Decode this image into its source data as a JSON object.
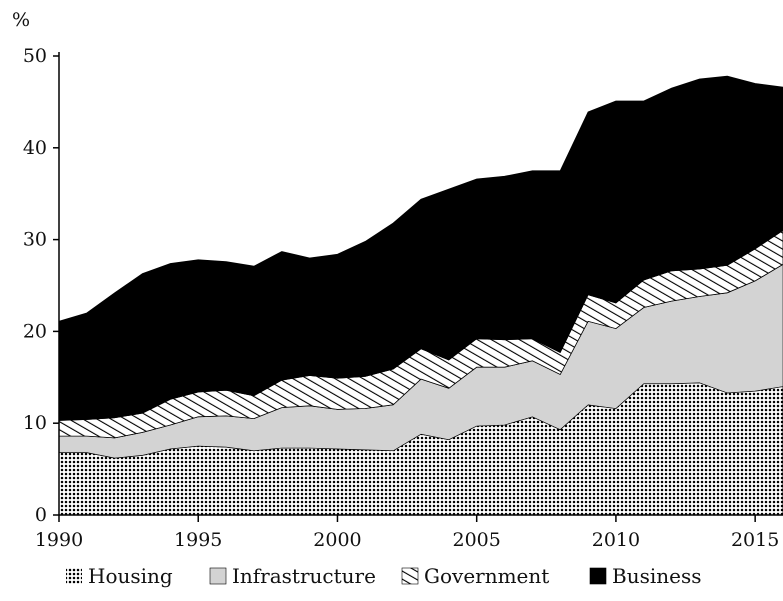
{
  "chart_data": {
    "type": "area",
    "stacked": true,
    "y_unit_label": "%",
    "x": [
      1990,
      1991,
      1992,
      1993,
      1994,
      1995,
      1996,
      1997,
      1998,
      1999,
      2000,
      2001,
      2002,
      2003,
      2004,
      2005,
      2006,
      2007,
      2008,
      2009,
      2010,
      2011,
      2012,
      2013,
      2014,
      2015,
      2016
    ],
    "series": [
      {
        "name": "Housing",
        "pattern": "dots",
        "color": "#000000",
        "values": [
          6.8,
          6.8,
          6.2,
          6.5,
          7.2,
          7.5,
          7.4,
          7.0,
          7.3,
          7.3,
          7.2,
          7.1,
          7.0,
          8.8,
          8.2,
          9.7,
          9.8,
          10.7,
          9.3,
          12.0,
          11.6,
          14.3,
          14.3,
          14.4,
          13.3,
          13.5,
          14.0
        ]
      },
      {
        "name": "Infrastructure",
        "pattern": "solid",
        "color": "#d3d3d3",
        "values": [
          1.8,
          1.8,
          2.2,
          2.5,
          2.6,
          3.2,
          3.4,
          3.5,
          4.4,
          4.6,
          4.3,
          4.5,
          5.0,
          6.0,
          5.6,
          6.4,
          6.3,
          6.1,
          6.0,
          9.1,
          8.7,
          8.3,
          9.0,
          9.4,
          10.9,
          12.0,
          13.3
        ]
      },
      {
        "name": "Government",
        "pattern": "stripes",
        "color": "#000000",
        "values": [
          1.7,
          1.8,
          2.2,
          2.1,
          2.8,
          2.7,
          2.8,
          2.5,
          3.0,
          3.3,
          3.4,
          3.5,
          3.9,
          3.3,
          3.1,
          3.1,
          3.0,
          2.4,
          2.4,
          2.9,
          2.8,
          3.0,
          3.3,
          3.0,
          3.0,
          3.5,
          3.7
        ]
      },
      {
        "name": "Business",
        "pattern": "solid",
        "color": "#000000",
        "values": [
          10.8,
          11.6,
          13.6,
          15.2,
          14.8,
          14.4,
          14.0,
          14.1,
          14.0,
          12.8,
          13.5,
          14.7,
          15.9,
          16.3,
          18.6,
          17.4,
          17.8,
          18.3,
          19.8,
          19.9,
          22.0,
          19.5,
          19.9,
          20.7,
          20.6,
          18.0,
          15.6
        ]
      }
    ],
    "x_ticks": [
      1990,
      1995,
      2000,
      2005,
      2010,
      2015
    ],
    "y_ticks": [
      0,
      10,
      20,
      30,
      40,
      50
    ],
    "xlim": [
      1990,
      2016
    ],
    "ylim": [
      0,
      50
    ],
    "grid": false,
    "legend_position": "bottom"
  }
}
